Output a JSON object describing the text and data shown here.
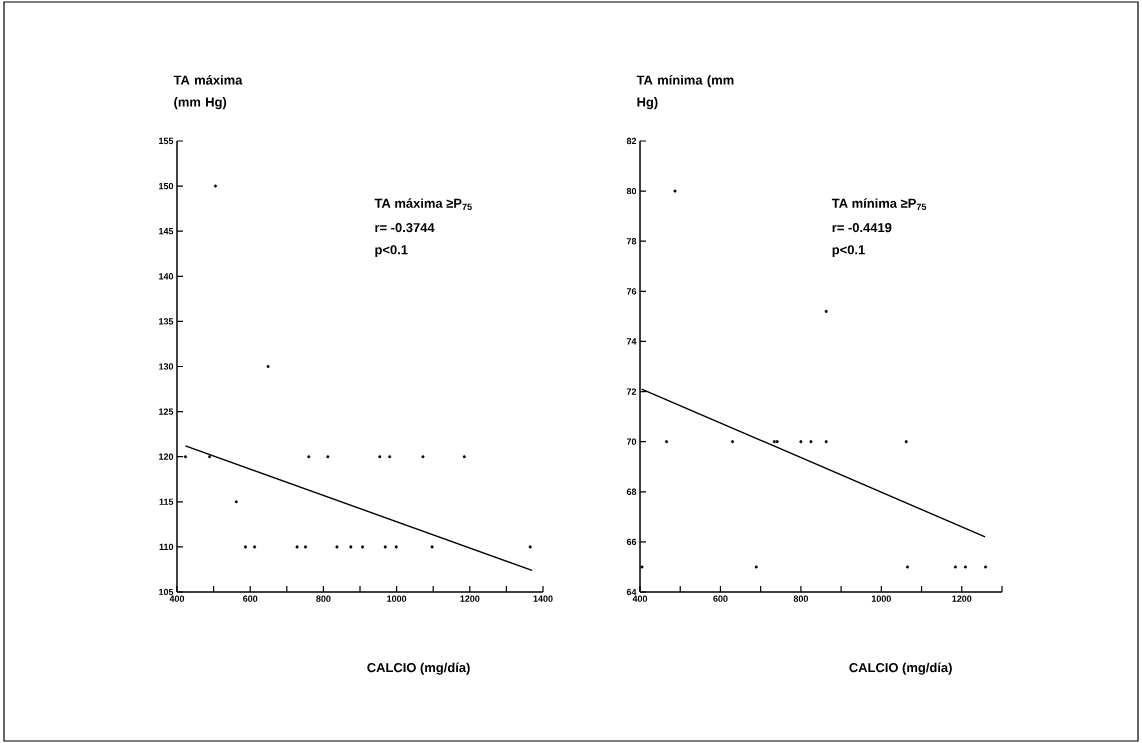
{
  "chart_data": [
    {
      "type": "scatter",
      "xlabel": "CALCIO (mg/día)",
      "ylabel": "TA máxima (mm Hg)",
      "marker": "circle",
      "grid": false,
      "annotations": [
        "TA máxima ≥P$_{75}$",
        "r= -0.3744",
        "p<0.1"
      ],
      "xlim": [
        400,
        1400
      ],
      "ylim": [
        105,
        155
      ],
      "xticks": [
        400,
        {
          "value": 500,
          "label": null
        },
        600,
        {
          "value": 700,
          "label": null
        },
        800,
        {
          "value": 900,
          "label": null
        },
        1000,
        {
          "value": 1100,
          "label": null
        },
        1200,
        {
          "value": 1300,
          "label": null
        },
        1400
      ],
      "yticks": [
        105,
        110,
        115,
        120,
        125,
        130,
        135,
        140,
        145,
        150,
        155
      ],
      "series": [
        {
          "color": "#000000",
          "x": [
            423,
            489,
            760,
            812,
            954,
            981,
            1072,
            1185,
            562,
            649,
            505,
            587,
            612,
            728,
            751,
            837,
            875,
            907,
            969,
            999,
            1097,
            1365
          ],
          "values": [
            120,
            120,
            120,
            120,
            120,
            120,
            120,
            120,
            115,
            130,
            150,
            110,
            110,
            110,
            110,
            110,
            110,
            110,
            110,
            110,
            110,
            110
          ]
        },
        {
          "type": "line",
          "color": "#000000",
          "marker": "none",
          "x": [
            423,
            1370
          ],
          "values": [
            121.2,
            107.4
          ]
        }
      ]
    },
    {
      "type": "scatter",
      "xlabel": "CALCIO (mg/día)",
      "ylabel": "TA mínima (mm Hg)",
      "marker": "circle",
      "grid": false,
      "annotations": [
        "TA mínima ≥P$_{75}$",
        "r= -0.4419",
        "p<0.1"
      ],
      "xlim": [
        400,
        1300
      ],
      "ylim": [
        64,
        82
      ],
      "xticks": [
        400,
        {
          "value": 500,
          "label": null
        },
        600,
        {
          "value": 700,
          "label": null
        },
        800,
        {
          "value": 900,
          "label": null
        },
        1000,
        {
          "value": 1100,
          "label": null
        },
        1200,
        {
          "value": 1300,
          "label": null
        }
      ],
      "yticks": [
        64,
        66,
        68,
        70,
        72,
        74,
        76,
        78,
        80,
        82
      ],
      "series": [
        {
          "color": "#000000",
          "x": [
            466,
            630,
            734,
            741,
            800,
            825,
            863,
            1062,
            863,
            487,
            405,
            689,
            1065,
            1184,
            1209,
            1259
          ],
          "values": [
            70,
            70,
            70,
            70,
            70,
            70,
            70,
            70,
            75.2,
            80,
            65,
            65,
            65,
            65,
            65,
            65
          ]
        },
        {
          "type": "line",
          "color": "#000000",
          "marker": "none",
          "x": [
            404,
            1258
          ],
          "values": [
            72.1,
            66.2
          ]
        }
      ]
    }
  ]
}
